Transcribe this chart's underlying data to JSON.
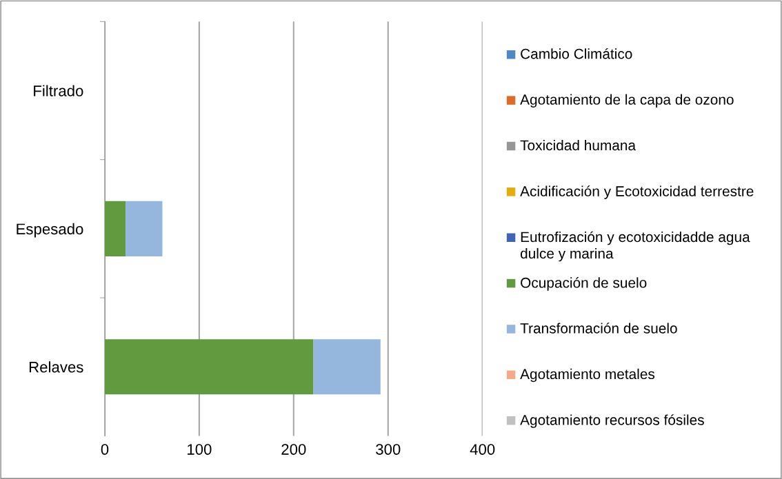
{
  "chart_data": {
    "type": "bar",
    "orientation": "horizontal",
    "stacked": true,
    "categories": [
      "Filtrado",
      "Espesado",
      "Relaves"
    ],
    "series": [
      {
        "name": "Cambio Climático",
        "color": "#4f88c6",
        "values": [
          0,
          0,
          0
        ]
      },
      {
        "name": "Agotamiento de la capa de ozono",
        "color": "#de6b27",
        "values": [
          0,
          0,
          0
        ]
      },
      {
        "name": "Toxicidad humana",
        "color": "#969696",
        "values": [
          0,
          0,
          0
        ]
      },
      {
        "name": "Acidificación y Ecotoxicidad terrestre",
        "color": "#e4ad0c",
        "values": [
          0,
          0,
          0
        ]
      },
      {
        "name": "Eutrofización y ecotoxicidadde agua dulce y marina",
        "color": "#3f64b5",
        "values": [
          0,
          0,
          0
        ]
      },
      {
        "name": "Ocupación de suelo",
        "color": "#629b3f",
        "values": [
          0,
          22,
          221
        ]
      },
      {
        "name": "Transformación de suelo",
        "color": "#95b7de",
        "values": [
          0,
          39,
          71
        ]
      },
      {
        "name": "Agotamiento metales",
        "color": "#f4a98a",
        "values": [
          0,
          0,
          0
        ]
      },
      {
        "name": "Agotamiento recursos fósiles",
        "color": "#c0c0c0",
        "values": [
          0,
          null,
          null
        ]
      }
    ],
    "xlim": [
      0,
      400
    ],
    "xticks": [
      0,
      100,
      200,
      300,
      400
    ],
    "grid": "x",
    "legend": "right"
  }
}
